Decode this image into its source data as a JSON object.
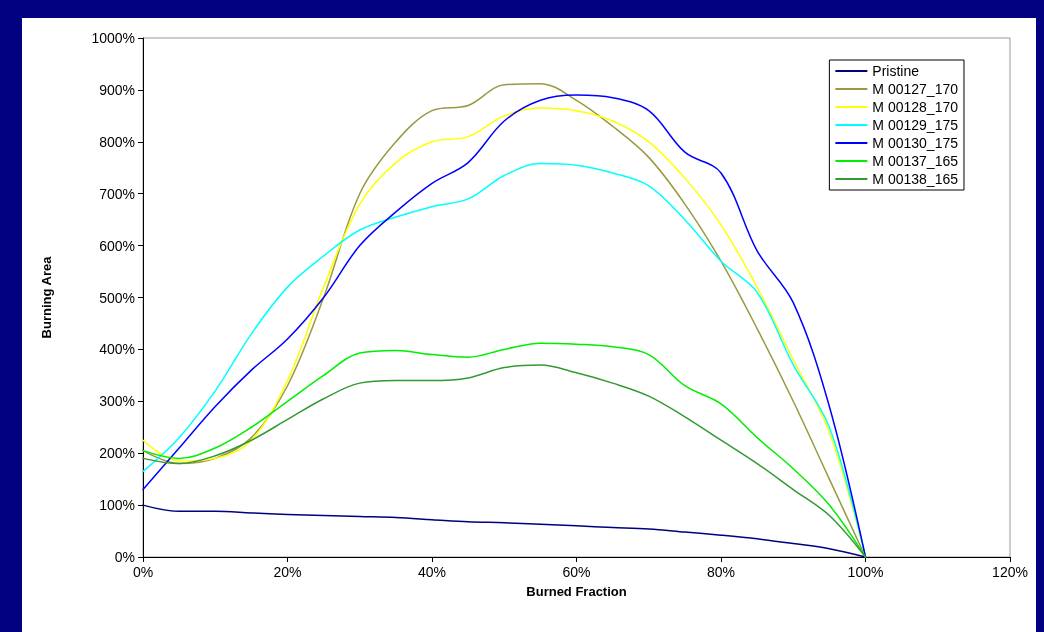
{
  "chart_data": {
    "type": "line",
    "xlabel": "Burned Fraction",
    "ylabel": "Burning Area",
    "x": [
      0,
      5,
      10,
      15,
      20,
      25,
      30,
      35,
      40,
      45,
      50,
      55,
      60,
      65,
      70,
      75,
      80,
      85,
      90,
      95,
      100
    ],
    "series": [
      {
        "name": "Pristine",
        "color": "#000080",
        "values": [
          100,
          88,
          88,
          85,
          82,
          80,
          78,
          76,
          72,
          68,
          66,
          63,
          60,
          57,
          54,
          48,
          42,
          35,
          26,
          16,
          0
        ]
      },
      {
        "name": "M 00127_170",
        "color": "#999940",
        "values": [
          205,
          180,
          190,
          230,
          330,
          500,
          700,
          800,
          860,
          870,
          910,
          912,
          880,
          830,
          770,
          680,
          570,
          440,
          300,
          150,
          0
        ]
      },
      {
        "name": "M 00128_170",
        "color": "#ffff00",
        "values": [
          225,
          185,
          190,
          225,
          340,
          520,
          680,
          760,
          800,
          810,
          850,
          865,
          860,
          840,
          800,
          730,
          640,
          520,
          380,
          240,
          0
        ]
      },
      {
        "name": "M 00129_175",
        "color": "#00ffff",
        "values": [
          165,
          230,
          320,
          430,
          520,
          580,
          630,
          655,
          675,
          690,
          735,
          758,
          755,
          740,
          715,
          650,
          570,
          510,
          370,
          250,
          0
        ]
      },
      {
        "name": "M 00130_175",
        "color": "#0000ff",
        "values": [
          130,
          210,
          290,
          360,
          420,
          500,
          600,
          665,
          720,
          760,
          840,
          880,
          890,
          885,
          860,
          780,
          740,
          590,
          490,
          290,
          0
        ]
      },
      {
        "name": "M 00137_165",
        "color": "#00ee00",
        "values": [
          205,
          190,
          210,
          250,
          300,
          350,
          393,
          398,
          390,
          385,
          400,
          412,
          410,
          405,
          390,
          330,
          295,
          230,
          170,
          100,
          0
        ]
      },
      {
        "name": "M 00138_165",
        "color": "#339933",
        "values": [
          190,
          180,
          195,
          225,
          265,
          305,
          335,
          340,
          340,
          345,
          365,
          370,
          355,
          335,
          310,
          270,
          225,
          180,
          130,
          80,
          0
        ]
      }
    ],
    "xlim": [
      0,
      120
    ],
    "xticks": [
      {
        "value": 0,
        "label": "0%"
      },
      {
        "value": 20,
        "label": "20%"
      },
      {
        "value": 40,
        "label": "40%"
      },
      {
        "value": 60,
        "label": "60%"
      },
      {
        "value": 80,
        "label": "80%"
      },
      {
        "value": 100,
        "label": "100%"
      },
      {
        "value": 120,
        "label": "120%"
      }
    ],
    "ylim": [
      0,
      1000
    ],
    "yticks": [
      {
        "value": 0,
        "label": "0%"
      },
      {
        "value": 100,
        "label": "100%"
      },
      {
        "value": 200,
        "label": "200%"
      },
      {
        "value": 300,
        "label": "300%"
      },
      {
        "value": 400,
        "label": "400%"
      },
      {
        "value": 500,
        "label": "500%"
      },
      {
        "value": 600,
        "label": "600%"
      },
      {
        "value": 700,
        "label": "700%"
      },
      {
        "value": 800,
        "label": "800%"
      },
      {
        "value": 900,
        "label": "900%"
      },
      {
        "value": 1000,
        "label": "1000%"
      }
    ],
    "grid": false,
    "legend": "top right",
    "marker": "none",
    "line_style": "solid"
  }
}
